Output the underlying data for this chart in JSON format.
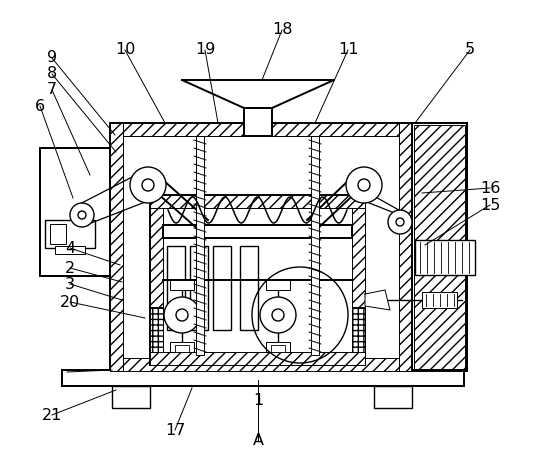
{
  "bg_color": "#ffffff",
  "lw_thin": 0.7,
  "lw_med": 1.0,
  "lw_thick": 1.4,
  "font_size": 11.5,
  "label_data": [
    [
      "9",
      52,
      58,
      115,
      135
    ],
    [
      "8",
      52,
      74,
      116,
      152
    ],
    [
      "7",
      52,
      90,
      90,
      175
    ],
    [
      "6",
      40,
      106,
      73,
      198
    ],
    [
      "4",
      70,
      248,
      120,
      265
    ],
    [
      "2",
      70,
      268,
      122,
      282
    ],
    [
      "3",
      70,
      284,
      122,
      300
    ],
    [
      "20",
      70,
      302,
      145,
      318
    ],
    [
      "10",
      125,
      50,
      165,
      123
    ],
    [
      "19",
      205,
      50,
      218,
      123
    ],
    [
      "18",
      282,
      30,
      262,
      80
    ],
    [
      "11",
      348,
      50,
      315,
      123
    ],
    [
      "5",
      470,
      50,
      415,
      123
    ],
    [
      "16",
      490,
      188,
      422,
      193
    ],
    [
      "15",
      490,
      205,
      425,
      245
    ],
    [
      "1",
      258,
      400,
      258,
      380
    ],
    [
      "21",
      52,
      415,
      116,
      390
    ],
    [
      "17",
      175,
      430,
      192,
      388
    ],
    [
      "A",
      258,
      440,
      258,
      395
    ]
  ]
}
